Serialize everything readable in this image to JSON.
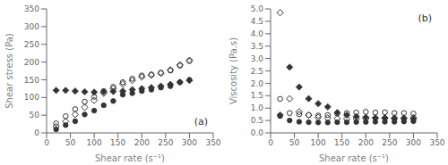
{
  "chart_data": [
    {
      "type": "scatter",
      "title": "(a)",
      "x_label": "Shear rate (s⁻¹)",
      "y_label": "Shear stress (Pa)",
      "xlim": [
        0,
        350
      ],
      "ylim": [
        0,
        350
      ],
      "xticks": [
        0,
        50,
        100,
        150,
        200,
        250,
        300,
        350
      ],
      "yticks": [
        0,
        50,
        100,
        150,
        200,
        250,
        300,
        350
      ],
      "x": [
        20,
        40,
        60,
        80,
        100,
        120,
        140,
        160,
        180,
        200,
        220,
        240,
        260,
        280,
        300
      ],
      "series": [
        {
          "marker": "open-diamond",
          "color": "#333333",
          "values": [
            18,
            32,
            52,
            72,
            92,
            112,
            125,
            138,
            148,
            158,
            163,
            168,
            178,
            192,
            205
          ]
        },
        {
          "marker": "open-circle",
          "color": "#333333",
          "values": [
            27,
            47,
            67,
            88,
            102,
            118,
            130,
            143,
            153,
            162,
            165,
            170,
            176,
            190,
            203
          ]
        },
        {
          "marker": "filled-diamond",
          "color": "#333333",
          "values": [
            120,
            120,
            118,
            116,
            115,
            116,
            117,
            118,
            122,
            125,
            128,
            132,
            137,
            143,
            148
          ]
        },
        {
          "marker": "filled-circle",
          "color": "#333333",
          "values": [
            10,
            22,
            33,
            52,
            63,
            78,
            90,
            108,
            112,
            118,
            122,
            128,
            132,
            143,
            150
          ]
        }
      ]
    },
    {
      "type": "scatter",
      "title": "(b)",
      "x_label": "Shear rate (s⁻¹)",
      "y_label": "Viscosity (Pa.s)",
      "xlim": [
        0,
        350
      ],
      "ylim": [
        0.0,
        5.0
      ],
      "xticks": [
        0,
        50,
        100,
        150,
        200,
        250,
        300,
        350
      ],
      "yticks": [
        {
          "value": 0,
          "label": "0.0"
        },
        0.5,
        {
          "value": 1,
          "label": "1.0"
        },
        1.5,
        {
          "value": 2,
          "label": "2.0"
        },
        2.5,
        {
          "value": 3,
          "label": "3.0"
        },
        3.5,
        {
          "value": 4,
          "label": "4.0"
        },
        4.5,
        {
          "value": 5,
          "label": "5.0"
        }
      ],
      "x": [
        20,
        40,
        60,
        80,
        100,
        120,
        140,
        160,
        180,
        200,
        220,
        240,
        260,
        280,
        300
      ],
      "series": [
        {
          "marker": "open-diamond",
          "color": "#333333",
          "values": [
            4.85,
            1.38,
            0.85,
            0.72,
            0.63,
            0.6,
            0.58,
            0.57,
            0.58,
            0.58,
            0.6,
            0.6,
            0.6,
            0.6,
            0.62
          ]
        },
        {
          "marker": "open-circle",
          "color": "#333333",
          "values": [
            1.37,
            0.8,
            0.75,
            0.72,
            0.7,
            0.72,
            0.78,
            0.8,
            0.82,
            0.85,
            0.82,
            0.83,
            0.8,
            0.8,
            0.78
          ]
        },
        {
          "marker": "filled-diamond",
          "color": "#333333",
          "values": [
            0.72,
            2.65,
            1.85,
            1.38,
            1.18,
            1.05,
            0.82,
            0.72,
            0.66,
            0.63,
            0.6,
            0.6,
            0.58,
            0.58,
            0.57
          ]
        },
        {
          "marker": "filled-circle",
          "color": "#333333",
          "values": [
            0.68,
            0.5,
            0.45,
            0.43,
            0.42,
            0.42,
            0.43,
            0.43,
            0.44,
            0.44,
            0.45,
            0.45,
            0.45,
            0.46,
            0.47
          ]
        }
      ]
    }
  ]
}
